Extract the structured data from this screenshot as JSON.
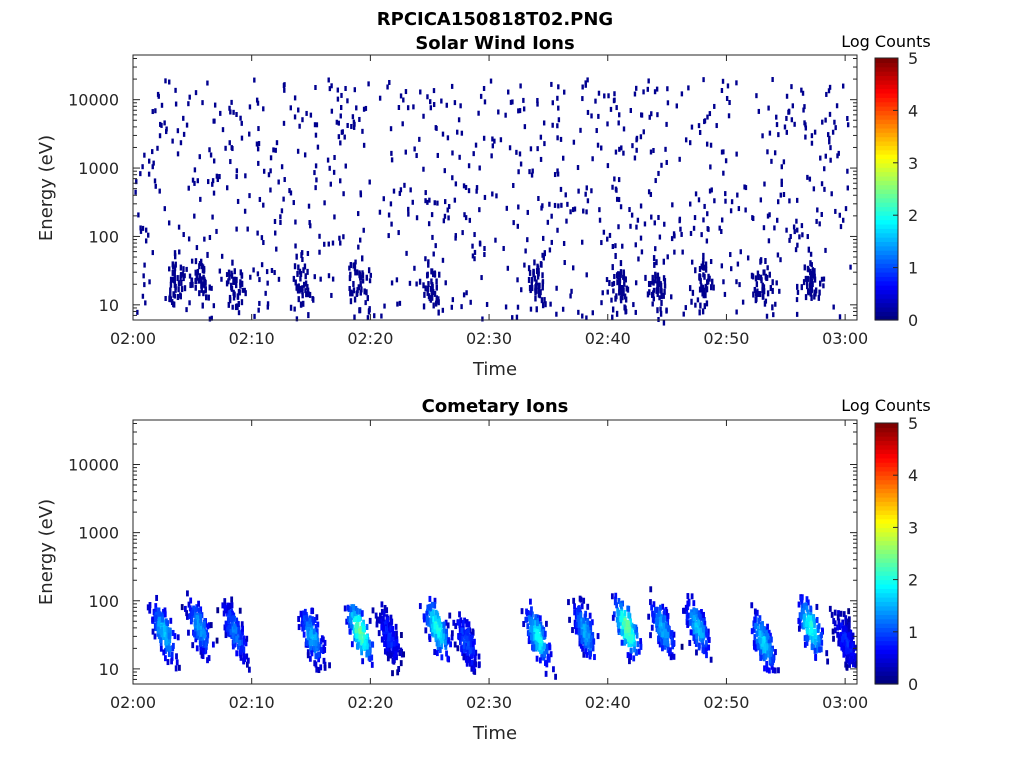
{
  "figure": {
    "title_line1": "RPCICA150818T02.PNG"
  },
  "colors": {
    "axis": "#262626",
    "jet_low": "#00008f",
    "jet_high": "#800000"
  },
  "chart_data": [
    {
      "type": "heatmap",
      "title": "Solar Wind Ions",
      "xlabel": "Time",
      "ylabel": "Energy (eV)",
      "x_ticks": [
        "02:00",
        "02:10",
        "02:20",
        "02:30",
        "02:40",
        "02:50",
        "03:00"
      ],
      "y_ticks": [
        "10",
        "100",
        "1000",
        "10000"
      ],
      "y_scale": "log",
      "y_range_ev": [
        6,
        45000
      ],
      "x_range_min": [
        0,
        61
      ],
      "colorbar": {
        "label": "Log Counts",
        "ticks": [
          "0",
          "1",
          "2",
          "3",
          "4",
          "5"
        ],
        "range": [
          0,
          5
        ],
        "colormap": "jet"
      },
      "description_values": {
        "sparse_hits_log_counts": 0.1,
        "sparse_hits_energy_range_ev": [
          6,
          20000
        ],
        "low_energy_bursts_min": [
          3.5,
          5.5,
          8.5,
          14,
          19,
          25,
          34,
          41,
          44,
          48,
          53,
          57
        ]
      }
    },
    {
      "type": "heatmap",
      "title": "Cometary Ions",
      "xlabel": "Time",
      "ylabel": "Energy (eV)",
      "x_ticks": [
        "02:00",
        "02:10",
        "02:20",
        "02:30",
        "02:40",
        "02:50",
        "03:00"
      ],
      "y_ticks": [
        "10",
        "100",
        "1000",
        "10000"
      ],
      "y_scale": "log",
      "y_range_ev": [
        6,
        45000
      ],
      "x_range_min": [
        0,
        61
      ],
      "colorbar": {
        "label": "Log Counts",
        "ticks": [
          "0",
          "1",
          "2",
          "3",
          "4",
          "5"
        ],
        "range": [
          0,
          5
        ],
        "colormap": "jet"
      },
      "bursts": [
        {
          "t_min": 2.5,
          "e_peak_ev": 35,
          "peak_log_counts": 1.6
        },
        {
          "t_min": 5.5,
          "e_peak_ev": 40,
          "peak_log_counts": 1.4
        },
        {
          "t_min": 8.5,
          "e_peak_ev": 35,
          "peak_log_counts": 1.2
        },
        {
          "t_min": 15,
          "e_peak_ev": 30,
          "peak_log_counts": 1.5
        },
        {
          "t_min": 19,
          "e_peak_ev": 35,
          "peak_log_counts": 2.4
        },
        {
          "t_min": 21.5,
          "e_peak_ev": 30,
          "peak_log_counts": 0.8
        },
        {
          "t_min": 25.5,
          "e_peak_ev": 40,
          "peak_log_counts": 2.0
        },
        {
          "t_min": 28,
          "e_peak_ev": 25,
          "peak_log_counts": 1.0
        },
        {
          "t_min": 34,
          "e_peak_ev": 30,
          "peak_log_counts": 1.9
        },
        {
          "t_min": 38,
          "e_peak_ev": 35,
          "peak_log_counts": 1.5
        },
        {
          "t_min": 41.5,
          "e_peak_ev": 40,
          "peak_log_counts": 2.4
        },
        {
          "t_min": 44.5,
          "e_peak_ev": 40,
          "peak_log_counts": 1.5
        },
        {
          "t_min": 47.5,
          "e_peak_ev": 40,
          "peak_log_counts": 1.6
        },
        {
          "t_min": 53,
          "e_peak_ev": 25,
          "peak_log_counts": 1.7
        },
        {
          "t_min": 57,
          "e_peak_ev": 40,
          "peak_log_counts": 2.0
        },
        {
          "t_min": 60,
          "e_peak_ev": 25,
          "peak_log_counts": 0.8
        }
      ]
    }
  ]
}
